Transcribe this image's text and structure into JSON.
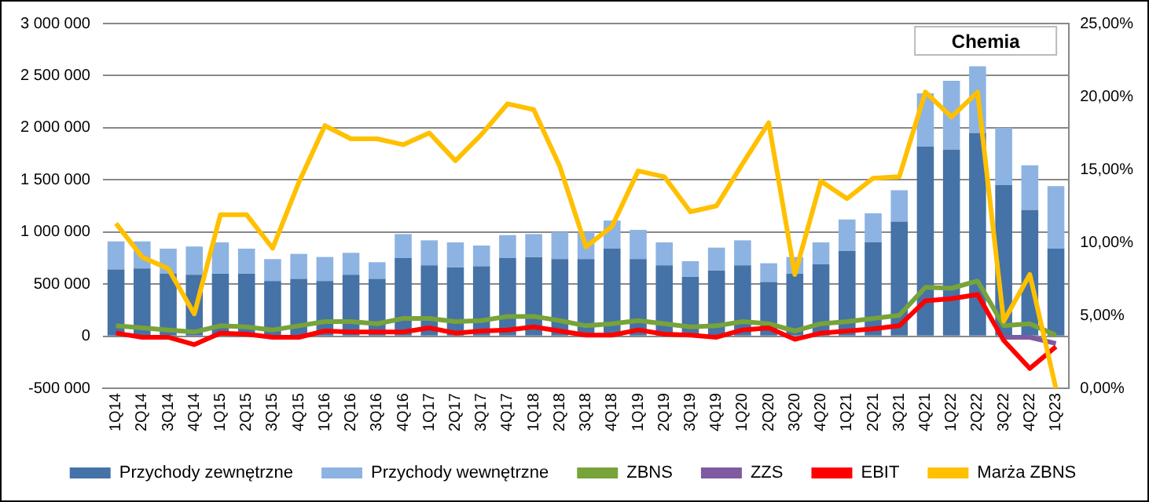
{
  "chart_data": {
    "type": "bar",
    "title": "Chemia",
    "stacked": true,
    "grid": "y",
    "legend": "bottom",
    "marker": "none",
    "categories": [
      "1Q14",
      "2Q14",
      "3Q14",
      "4Q14",
      "1Q15",
      "2Q15",
      "3Q15",
      "4Q15",
      "1Q16",
      "2Q16",
      "3Q16",
      "4Q16",
      "1Q17",
      "2Q17",
      "3Q17",
      "4Q17",
      "1Q18",
      "2Q18",
      "3Q18",
      "4Q18",
      "1Q19",
      "2Q19",
      "3Q19",
      "4Q19",
      "1Q20",
      "2Q20",
      "3Q20",
      "4Q20",
      "1Q21",
      "2Q21",
      "3Q21",
      "4Q21",
      "1Q22",
      "2Q22",
      "3Q22",
      "4Q22",
      "1Q23"
    ],
    "series": [
      {
        "name": "Przychody zewnętrzne",
        "color": "#4572a7",
        "values": [
          640000,
          650000,
          600000,
          590000,
          600000,
          600000,
          530000,
          550000,
          530000,
          590000,
          550000,
          750000,
          680000,
          660000,
          670000,
          750000,
          760000,
          740000,
          740000,
          840000,
          740000,
          680000,
          570000,
          630000,
          680000,
          520000,
          600000,
          690000,
          820000,
          900000,
          1100000,
          1820000,
          1790000,
          1950000,
          1450000,
          1210000,
          840000
        ]
      },
      {
        "name": "Przychody wewnętrzne",
        "color": "#8db3e2",
        "values": [
          270000,
          260000,
          240000,
          270000,
          300000,
          240000,
          210000,
          240000,
          230000,
          210000,
          160000,
          230000,
          240000,
          240000,
          200000,
          220000,
          220000,
          260000,
          260000,
          270000,
          280000,
          220000,
          150000,
          220000,
          240000,
          180000,
          160000,
          210000,
          300000,
          280000,
          300000,
          510000,
          660000,
          640000,
          550000,
          430000,
          600000
        ]
      },
      {
        "name": "ZBNS",
        "type": "line",
        "color": "#77a33a",
        "values": [
          100000,
          80000,
          60000,
          40000,
          100000,
          90000,
          60000,
          100000,
          140000,
          140000,
          120000,
          170000,
          170000,
          140000,
          150000,
          190000,
          190000,
          150000,
          100000,
          120000,
          150000,
          120000,
          90000,
          100000,
          140000,
          120000,
          50000,
          120000,
          140000,
          170000,
          200000,
          470000,
          460000,
          530000,
          100000,
          120000,
          10000
        ]
      },
      {
        "name": "ZZS",
        "type": "line",
        "color": "#7e5aa0",
        "values": [
          null,
          null,
          null,
          null,
          null,
          null,
          null,
          null,
          null,
          null,
          null,
          null,
          null,
          null,
          null,
          null,
          null,
          null,
          null,
          null,
          null,
          null,
          null,
          null,
          null,
          null,
          null,
          null,
          null,
          null,
          null,
          null,
          null,
          null,
          -10000,
          -10000,
          -70000
        ]
      },
      {
        "name": "EBIT",
        "type": "line",
        "color": "#ff0000",
        "values": [
          30000,
          -10000,
          -10000,
          -80000,
          30000,
          20000,
          -10000,
          -10000,
          50000,
          40000,
          40000,
          40000,
          80000,
          30000,
          50000,
          60000,
          90000,
          50000,
          10000,
          10000,
          60000,
          20000,
          10000,
          -10000,
          60000,
          80000,
          -30000,
          30000,
          50000,
          70000,
          100000,
          340000,
          360000,
          400000,
          -40000,
          -310000,
          -100000
        ]
      },
      {
        "name": "Marża ZBNS",
        "type": "line",
        "axis": "y2",
        "color": "#ffc000",
        "values": [
          11.3,
          9.0,
          8.2,
          5.1,
          11.9,
          11.9,
          9.6,
          14.1,
          18.0,
          17.1,
          17.1,
          16.7,
          17.5,
          15.6,
          17.4,
          19.5,
          19.1,
          15.2,
          9.7,
          11.1,
          14.9,
          14.5,
          12.1,
          12.5,
          15.4,
          18.2,
          7.8,
          14.2,
          13.0,
          14.4,
          14.5,
          20.3,
          18.6,
          20.3,
          4.6,
          7.8,
          0
        ]
      }
    ],
    "ylim": [
      -500000,
      3000000
    ],
    "yticks": [
      {
        "value": -500000,
        "label": "-500 000"
      },
      {
        "value": 0,
        "label": "0"
      },
      {
        "value": 500000,
        "label": "500 000"
      },
      {
        "value": 1000000,
        "label": "1 000 000"
      },
      {
        "value": 1500000,
        "label": "1 500 000"
      },
      {
        "value": 2000000,
        "label": "2 000 000"
      },
      {
        "value": 2500000,
        "label": "2 500 000"
      },
      {
        "value": 3000000,
        "label": "3 000 000"
      }
    ],
    "y2lim": [
      0,
      25
    ],
    "y2ticks": [
      {
        "value": 0,
        "label": "0,00%"
      },
      {
        "value": 5,
        "label": "5,00%"
      },
      {
        "value": 10,
        "label": "10,00%"
      },
      {
        "value": 15,
        "label": "15,00%"
      },
      {
        "value": 20,
        "label": "20,00%"
      },
      {
        "value": 25,
        "label": "25,00%"
      }
    ]
  }
}
